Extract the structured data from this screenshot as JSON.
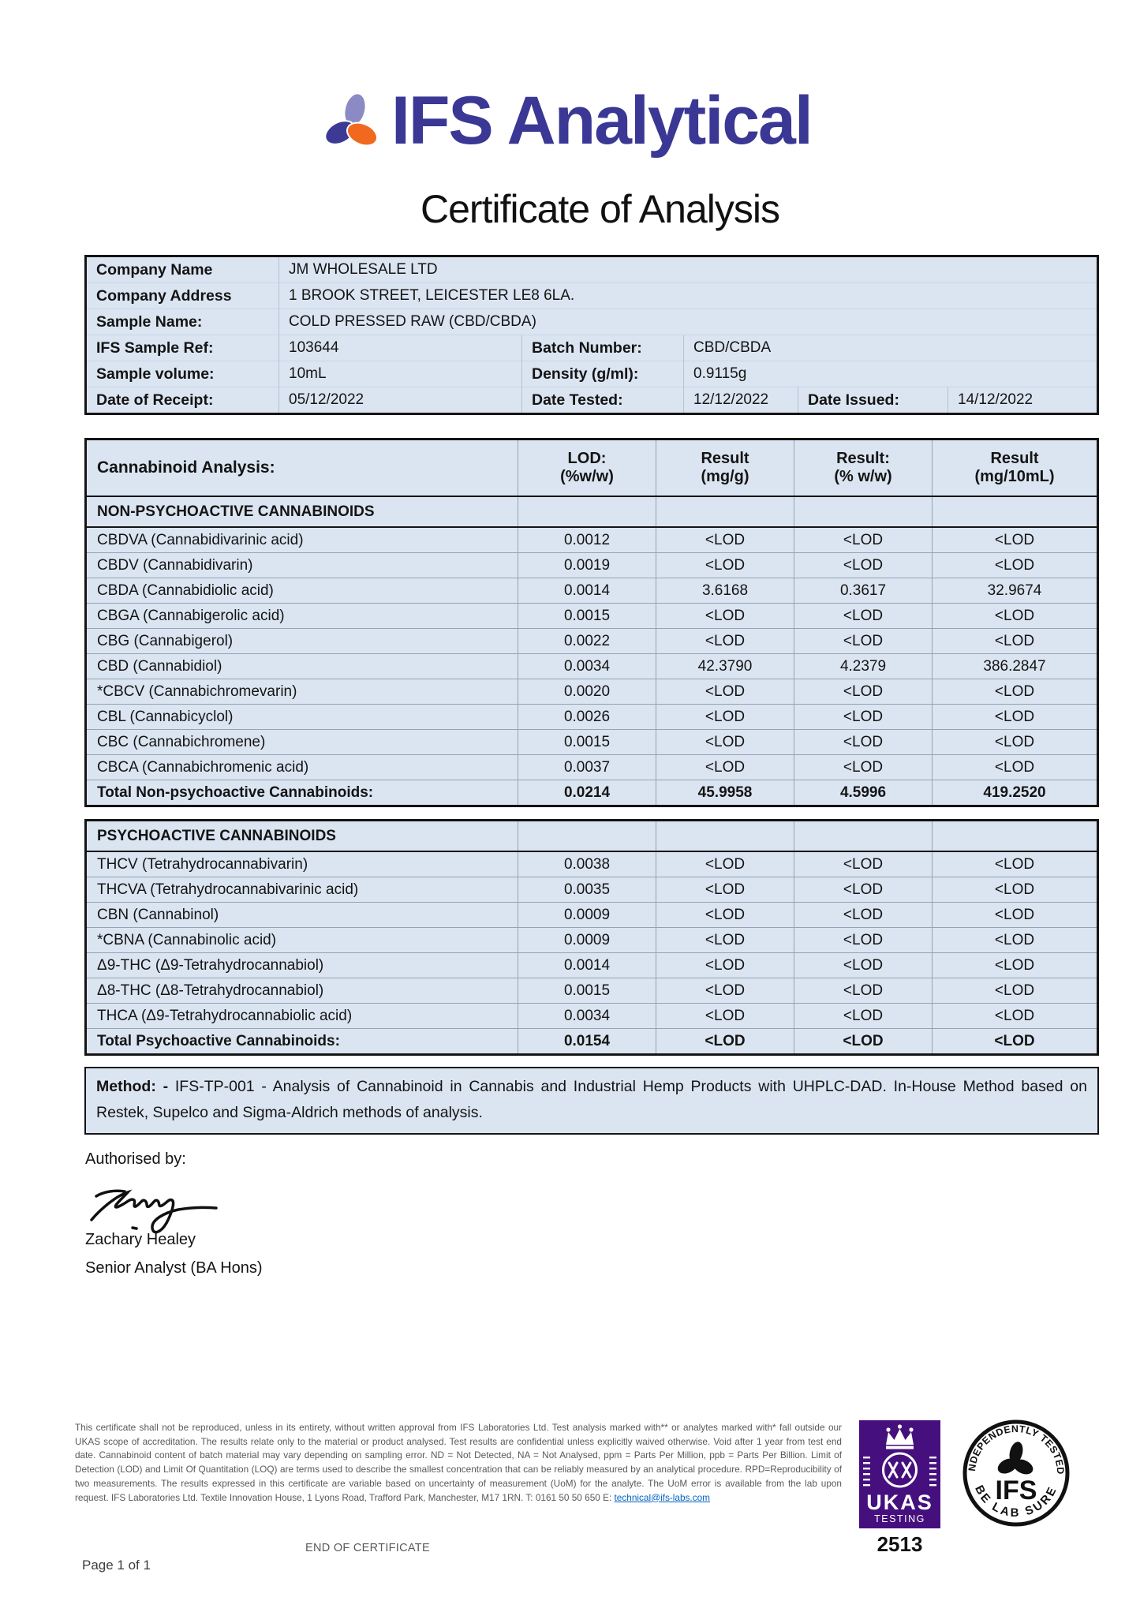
{
  "brand": {
    "name": "IFS Analytical"
  },
  "title": "Certificate of Analysis",
  "info": {
    "company_name_label": "Company Name",
    "company_name": "JM WHOLESALE LTD",
    "company_address_label": "Company Address",
    "company_address": "1 BROOK STREET, LEICESTER LE8 6LA.",
    "sample_name_label": "Sample Name:",
    "sample_name": "COLD PRESSED RAW (CBD/CBDA)",
    "ifs_sample_ref_label": "IFS Sample Ref:",
    "ifs_sample_ref": "103644",
    "batch_number_label": "Batch Number:",
    "batch_number": "CBD/CBDA",
    "sample_volume_label": "Sample volume:",
    "sample_volume": "10mL",
    "density_label": "Density (g/ml):",
    "density": "0.9115g",
    "date_receipt_label": "Date of Receipt:",
    "date_receipt": "05/12/2022",
    "date_tested_label": "Date Tested:",
    "date_tested": "12/12/2022",
    "date_issued_label": "Date Issued:",
    "date_issued": "14/12/2022"
  },
  "analysis": {
    "header": {
      "title": "Cannabinoid Analysis:",
      "lod_line1": "LOD:",
      "lod_line2": "(%w/w)",
      "mgg_line1": "Result",
      "mgg_line2": "(mg/g)",
      "pct_line1": "Result:",
      "pct_line2": "(% w/w)",
      "mg10_line1": "Result",
      "mg10_line2": "(mg/10mL)"
    },
    "non_psychoactive": {
      "section_title": "NON-PSYCHOACTIVE CANNABINOIDS",
      "rows": [
        {
          "name": "CBDVA (Cannabidivarinic acid)",
          "lod": "0.0012",
          "mg_g": "<LOD",
          "pct": "<LOD",
          "mg10": "<LOD"
        },
        {
          "name": "CBDV (Cannabidivarin)",
          "lod": "0.0019",
          "mg_g": "<LOD",
          "pct": "<LOD",
          "mg10": "<LOD"
        },
        {
          "name": "CBDA (Cannabidiolic acid)",
          "lod": "0.0014",
          "mg_g": "3.6168",
          "pct": "0.3617",
          "mg10": "32.9674"
        },
        {
          "name": "CBGA (Cannabigerolic acid)",
          "lod": "0.0015",
          "mg_g": "<LOD",
          "pct": "<LOD",
          "mg10": "<LOD"
        },
        {
          "name": "CBG (Cannabigerol)",
          "lod": "0.0022",
          "mg_g": "<LOD",
          "pct": "<LOD",
          "mg10": "<LOD"
        },
        {
          "name": "CBD (Cannabidiol)",
          "lod": "0.0034",
          "mg_g": "42.3790",
          "pct": "4.2379",
          "mg10": "386.2847"
        },
        {
          "name": "*CBCV (Cannabichromevarin)",
          "lod": "0.0020",
          "mg_g": "<LOD",
          "pct": "<LOD",
          "mg10": "<LOD"
        },
        {
          "name": "CBL (Cannabicyclol)",
          "lod": "0.0026",
          "mg_g": "<LOD",
          "pct": "<LOD",
          "mg10": "<LOD"
        },
        {
          "name": "CBC (Cannabichromene)",
          "lod": "0.0015",
          "mg_g": "<LOD",
          "pct": "<LOD",
          "mg10": "<LOD"
        },
        {
          "name": "CBCA (Cannabichromenic acid)",
          "lod": "0.0037",
          "mg_g": "<LOD",
          "pct": "<LOD",
          "mg10": "<LOD"
        },
        {
          "name": "Total Non-psychoactive Cannabinoids:",
          "lod": "0.0214",
          "mg_g": "45.9958",
          "pct": "4.5996",
          "mg10": "419.2520",
          "total": true
        }
      ]
    },
    "psychoactive": {
      "section_title": "PSYCHOACTIVE CANNABINOIDS",
      "rows": [
        {
          "name": "THCV (Tetrahydrocannabivarin)",
          "lod": "0.0038",
          "mg_g": "<LOD",
          "pct": "<LOD",
          "mg10": "<LOD"
        },
        {
          "name": "THCVA (Tetrahydrocannabivarinic acid)",
          "lod": "0.0035",
          "mg_g": "<LOD",
          "pct": "<LOD",
          "mg10": "<LOD"
        },
        {
          "name": "CBN (Cannabinol)",
          "lod": "0.0009",
          "mg_g": "<LOD",
          "pct": "<LOD",
          "mg10": "<LOD"
        },
        {
          "name": "*CBNA (Cannabinolic acid)",
          "lod": "0.0009",
          "mg_g": "<LOD",
          "pct": "<LOD",
          "mg10": "<LOD"
        },
        {
          "name": "Δ9-THC (Δ9-Tetrahydrocannabiol)",
          "lod": "0.0014",
          "mg_g": "<LOD",
          "pct": "<LOD",
          "mg10": "<LOD"
        },
        {
          "name": "Δ8-THC (Δ8-Tetrahydrocannabiol)",
          "lod": "0.0015",
          "mg_g": "<LOD",
          "pct": "<LOD",
          "mg10": "<LOD"
        },
        {
          "name": "THCA (Δ9-Tetrahydrocannabiolic acid)",
          "lod": "0.0034",
          "mg_g": "<LOD",
          "pct": "<LOD",
          "mg10": "<LOD"
        },
        {
          "name": "Total Psychoactive Cannabinoids:",
          "lod": "0.0154",
          "mg_g": "<LOD",
          "pct": "<LOD",
          "mg10": "<LOD",
          "total": true
        }
      ]
    }
  },
  "method": {
    "label": "Method: -",
    "text": " IFS-TP-001 - Analysis of Cannabinoid in Cannabis and Industrial Hemp Products with UHPLC-DAD. In-House Method based on Restek, Supelco and Sigma-Aldrich methods of analysis."
  },
  "signature": {
    "authorised_label": "Authorised by:",
    "name": "Zachary Healey",
    "role": "Senior Analyst (BA Hons)"
  },
  "footer": {
    "disclaimer": "This certificate shall not be reproduced, unless in its entirety, without written approval from IFS Laboratories Ltd. Test analysis marked with** or analytes marked with* fall outside our UKAS scope of accreditation.  The results relate only to the material or product analysed. Test results are confidential unless explicitly waived otherwise. Void after 1 year from test end date. Cannabinoid content of batch material may vary depending on sampling error. ND = Not Detected, NA = Not Analysed, ppm = Parts Per Million, ppb = Parts Per Billion. Limit of Detection (LOD) and Limit Of Quantitation (LOQ) are terms used to describe the smallest concentration that can be reliably measured by an analytical procedure. RPD=Reproducibility of two measurements. The results expressed in this certificate are variable based on uncertainty of measurement (UoM) for the analyte. The UoM error is available from the lab upon request. IFS Laboratories Ltd. Textile Innovation House, 1 Lyons Road, Trafford Park, Manchester, M17 1RN. T: 0161 50 50 650 E: ",
    "email": "technical@ifs-labs.com",
    "end_text": "END OF CERTIFICATE",
    "page_number": "Page 1 of 1",
    "ukas": {
      "name": "UKAS",
      "sub": "TESTING",
      "number": "2513"
    },
    "seal": {
      "top": "INDEPENDENTLY TESTED",
      "bottom": "BE LAB SURE",
      "center": "IFS"
    }
  },
  "colors": {
    "table_bg": "#dbe5f1",
    "brand_blue": "#3a3795",
    "leaf_lavender": "#8b8ac4",
    "leaf_blue": "#3c3a94",
    "leaf_orange": "#f1681f",
    "ukas_purple": "#45107e",
    "link_blue": "#0563c1"
  }
}
